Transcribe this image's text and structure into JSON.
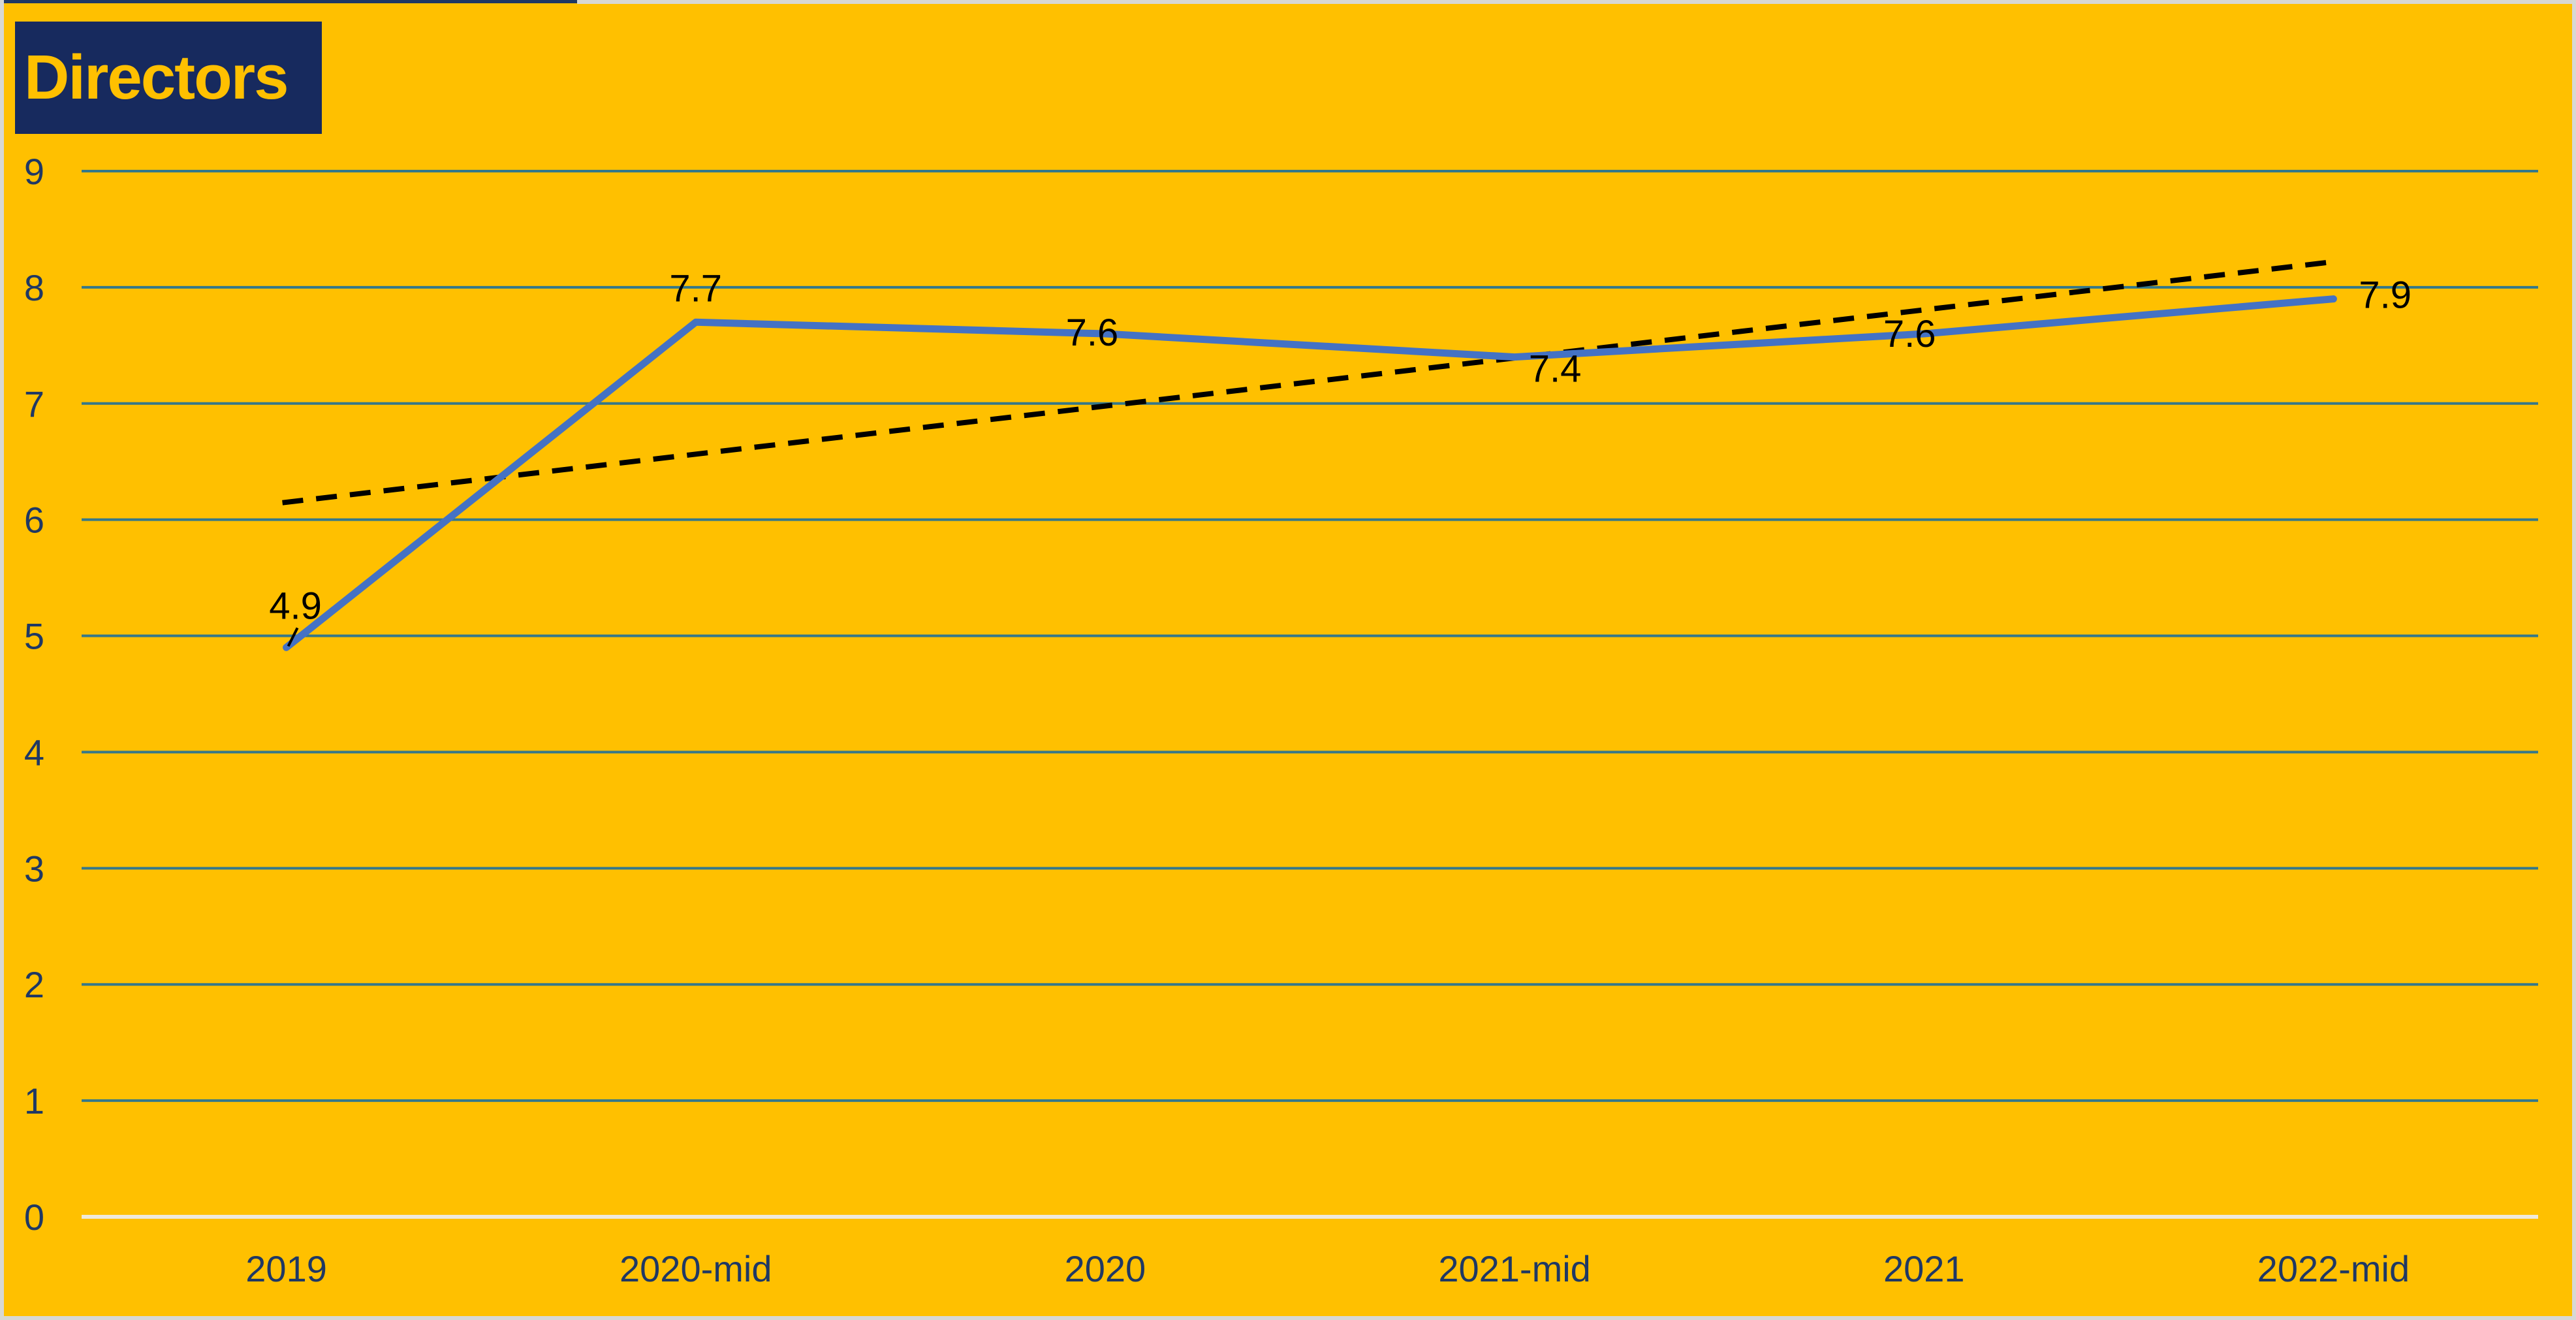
{
  "title": {
    "label": "Directors"
  },
  "chart_data": {
    "type": "line",
    "title": "Directors",
    "categories": [
      "2019",
      "2020-mid",
      "2020",
      "2021-mid",
      "2021",
      "2022-mid"
    ],
    "series": [
      {
        "name": "Directors",
        "values": [
          4.9,
          7.7,
          7.6,
          7.4,
          7.6,
          7.9
        ]
      }
    ],
    "data_labels": [
      "4.9",
      "7.7",
      "7.6",
      "7.4",
      "7.6",
      "7.9"
    ],
    "trendline": {
      "type": "linear",
      "style": "dashed",
      "start_value": 6.15,
      "end_value": 8.22,
      "color": "#000000"
    },
    "xlabel": "",
    "ylabel": "",
    "y_axis": {
      "min": 0,
      "max": 9,
      "step": 1,
      "ticks": [
        9,
        8,
        7,
        6,
        5,
        4,
        3,
        2,
        1,
        0
      ]
    },
    "grid": true,
    "legend_position": "none",
    "colors": {
      "background": "#FFC000",
      "series_line": "#4472C4",
      "gridline": "#35788A",
      "zero_axis_line": "#EFE9DA",
      "axis_label": "#1F3864",
      "data_label": "#000000",
      "title_background": "#172A5E",
      "title_text": "#FFC000"
    }
  }
}
